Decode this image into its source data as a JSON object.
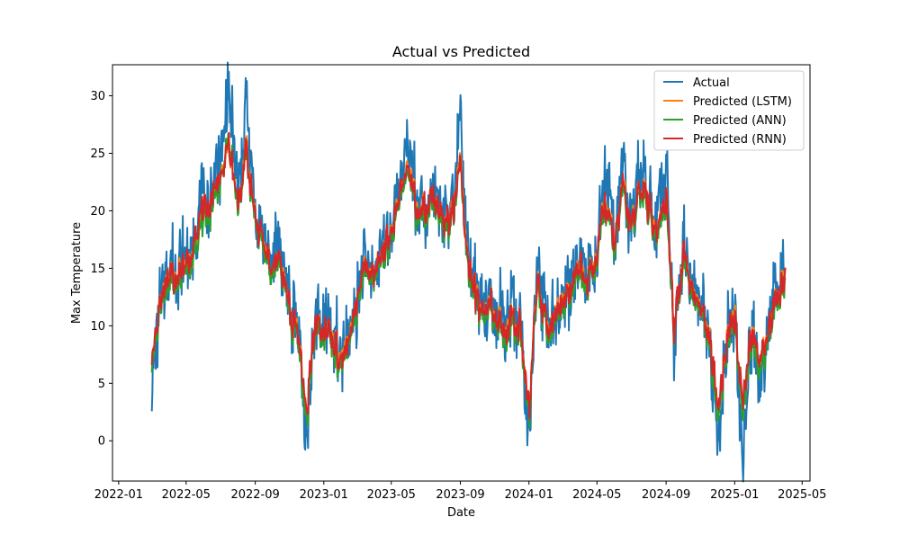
{
  "chart_data": {
    "type": "line",
    "title": "Actual vs Predicted",
    "xlabel": "Date",
    "ylabel": "Max Temperature",
    "x_range": [
      "2022-01-01",
      "2025-05-01"
    ],
    "xlim": [
      "2021-12-21",
      "2025-05-15"
    ],
    "ylim": [
      -3.5,
      32.7
    ],
    "grid": false,
    "legend_position": "top-right",
    "x_tick_labels": [
      "2022-01",
      "2022-05",
      "2022-09",
      "2023-01",
      "2023-05",
      "2023-09",
      "2024-01",
      "2024-05",
      "2024-09",
      "2025-01",
      "2025-05"
    ],
    "x_tick_dates": [
      "2022-01-01",
      "2022-05-01",
      "2022-09-01",
      "2023-01-01",
      "2023-05-01",
      "2023-09-01",
      "2024-01-01",
      "2024-05-01",
      "2024-09-01",
      "2025-01-01",
      "2025-05-01"
    ],
    "y_ticks": [
      0,
      5,
      10,
      15,
      20,
      25,
      30
    ],
    "y_tick_labels": [
      "0",
      "5",
      "10",
      "15",
      "20",
      "25",
      "30"
    ],
    "x": [
      "2022-03-01",
      "2022-03-15",
      "2022-04-01",
      "2022-04-15",
      "2022-05-01",
      "2022-05-15",
      "2022-06-01",
      "2022-06-15",
      "2022-07-01",
      "2022-07-15",
      "2022-08-01",
      "2022-08-15",
      "2022-09-01",
      "2022-09-15",
      "2022-10-01",
      "2022-10-15",
      "2022-11-01",
      "2022-11-15",
      "2022-12-01",
      "2022-12-15",
      "2023-01-01",
      "2023-01-15",
      "2023-02-01",
      "2023-02-15",
      "2023-03-01",
      "2023-03-15",
      "2023-04-01",
      "2023-04-15",
      "2023-05-01",
      "2023-05-15",
      "2023-06-01",
      "2023-06-15",
      "2023-07-01",
      "2023-07-15",
      "2023-08-01",
      "2023-08-15",
      "2023-09-01",
      "2023-09-15",
      "2023-10-01",
      "2023-10-15",
      "2023-11-01",
      "2023-11-15",
      "2023-12-01",
      "2023-12-15",
      "2024-01-01",
      "2024-01-15",
      "2024-02-01",
      "2024-02-15",
      "2024-03-01",
      "2024-03-15",
      "2024-04-01",
      "2024-04-15",
      "2024-05-01",
      "2024-05-15",
      "2024-06-01",
      "2024-06-15",
      "2024-07-01",
      "2024-07-15",
      "2024-08-01",
      "2024-08-15",
      "2024-09-01",
      "2024-09-15",
      "2024-10-01",
      "2024-10-15",
      "2024-11-01",
      "2024-11-15",
      "2024-12-01",
      "2024-12-15",
      "2025-01-01",
      "2025-01-15",
      "2025-02-01",
      "2025-02-15",
      "2025-03-01",
      "2025-03-15",
      "2025-04-01"
    ],
    "series": [
      {
        "name": "Actual",
        "color": "#1f77b4",
        "values": [
          6.5,
          11.0,
          15.5,
          14.0,
          16.0,
          17.5,
          22.0,
          21.0,
          24.0,
          31.0,
          21.0,
          29.0,
          19.0,
          17.5,
          15.0,
          16.5,
          12.0,
          10.0,
          -0.5,
          10.5,
          10.0,
          9.0,
          7.0,
          10.0,
          11.5,
          16.0,
          15.5,
          17.0,
          18.5,
          22.0,
          26.5,
          20.0,
          20.5,
          22.5,
          18.5,
          19.5,
          26.5,
          15.0,
          13.0,
          11.0,
          12.0,
          10.0,
          11.0,
          10.5,
          0.0,
          14.5,
          10.0,
          11.0,
          12.5,
          14.0,
          15.5,
          15.0,
          17.0,
          23.0,
          17.0,
          23.5,
          19.5,
          23.0,
          21.0,
          18.0,
          23.5,
          9.0,
          17.0,
          14.0,
          12.0,
          10.5,
          -1.0,
          8.0,
          12.0,
          -2.0,
          10.0,
          5.0,
          9.0,
          13.0,
          17.0
        ]
      },
      {
        "name": "Predicted (LSTM)",
        "color": "#ff7f0e",
        "values": [
          8.0,
          11.5,
          14.5,
          13.5,
          15.5,
          16.5,
          20.5,
          20.0,
          23.0,
          26.0,
          20.5,
          25.5,
          19.0,
          17.0,
          14.5,
          15.5,
          11.5,
          9.5,
          2.0,
          10.0,
          9.5,
          8.5,
          7.0,
          9.5,
          11.5,
          15.5,
          15.0,
          16.5,
          18.0,
          21.0,
          24.5,
          19.5,
          20.0,
          21.5,
          18.5,
          19.5,
          24.0,
          15.0,
          12.5,
          11.0,
          11.5,
          9.5,
          10.5,
          10.0,
          2.5,
          13.5,
          9.5,
          10.5,
          12.0,
          13.5,
          15.0,
          14.5,
          16.5,
          21.0,
          16.5,
          22.0,
          19.0,
          21.5,
          20.5,
          17.5,
          21.0,
          10.0,
          16.0,
          13.5,
          11.5,
          10.0,
          2.5,
          8.0,
          11.0,
          3.0,
          9.5,
          6.0,
          9.0,
          12.0,
          15.0
        ]
      },
      {
        "name": "Predicted (ANN)",
        "color": "#2ca02c",
        "values": [
          7.5,
          11.0,
          14.0,
          13.0,
          15.0,
          16.0,
          20.0,
          19.5,
          22.5,
          26.5,
          20.0,
          25.0,
          18.5,
          16.5,
          14.0,
          15.0,
          11.0,
          9.0,
          1.5,
          9.5,
          9.0,
          8.0,
          6.5,
          9.0,
          11.0,
          15.0,
          14.5,
          16.0,
          17.5,
          20.5,
          24.0,
          19.0,
          19.5,
          21.0,
          18.0,
          19.0,
          23.5,
          14.5,
          12.0,
          10.5,
          11.0,
          9.0,
          10.0,
          9.5,
          2.0,
          13.0,
          9.0,
          10.0,
          11.5,
          13.0,
          14.5,
          14.0,
          16.0,
          20.5,
          16.0,
          21.5,
          18.5,
          21.0,
          20.0,
          17.0,
          20.5,
          9.5,
          15.5,
          13.0,
          11.0,
          9.5,
          2.0,
          7.5,
          10.5,
          2.5,
          9.0,
          5.5,
          8.5,
          11.5,
          14.5
        ]
      },
      {
        "name": "Predicted (RNN)",
        "color": "#d62728",
        "values": [
          8.0,
          11.5,
          14.5,
          13.5,
          15.5,
          17.0,
          21.0,
          20.5,
          23.0,
          26.0,
          20.5,
          25.0,
          19.0,
          17.0,
          14.5,
          15.5,
          11.5,
          9.5,
          2.5,
          10.0,
          9.5,
          8.5,
          7.0,
          9.5,
          11.5,
          15.5,
          15.0,
          16.5,
          18.0,
          21.0,
          24.5,
          19.5,
          20.0,
          21.5,
          18.5,
          19.5,
          23.5,
          15.0,
          12.5,
          11.0,
          11.5,
          9.5,
          10.5,
          10.0,
          2.5,
          13.5,
          9.5,
          10.5,
          12.0,
          13.5,
          15.0,
          14.5,
          16.5,
          21.0,
          16.5,
          22.0,
          19.0,
          21.5,
          20.5,
          17.5,
          21.0,
          10.0,
          16.0,
          13.5,
          11.5,
          10.0,
          3.0,
          8.0,
          11.0,
          3.5,
          9.5,
          6.5,
          9.0,
          12.0,
          15.0
        ]
      }
    ]
  }
}
